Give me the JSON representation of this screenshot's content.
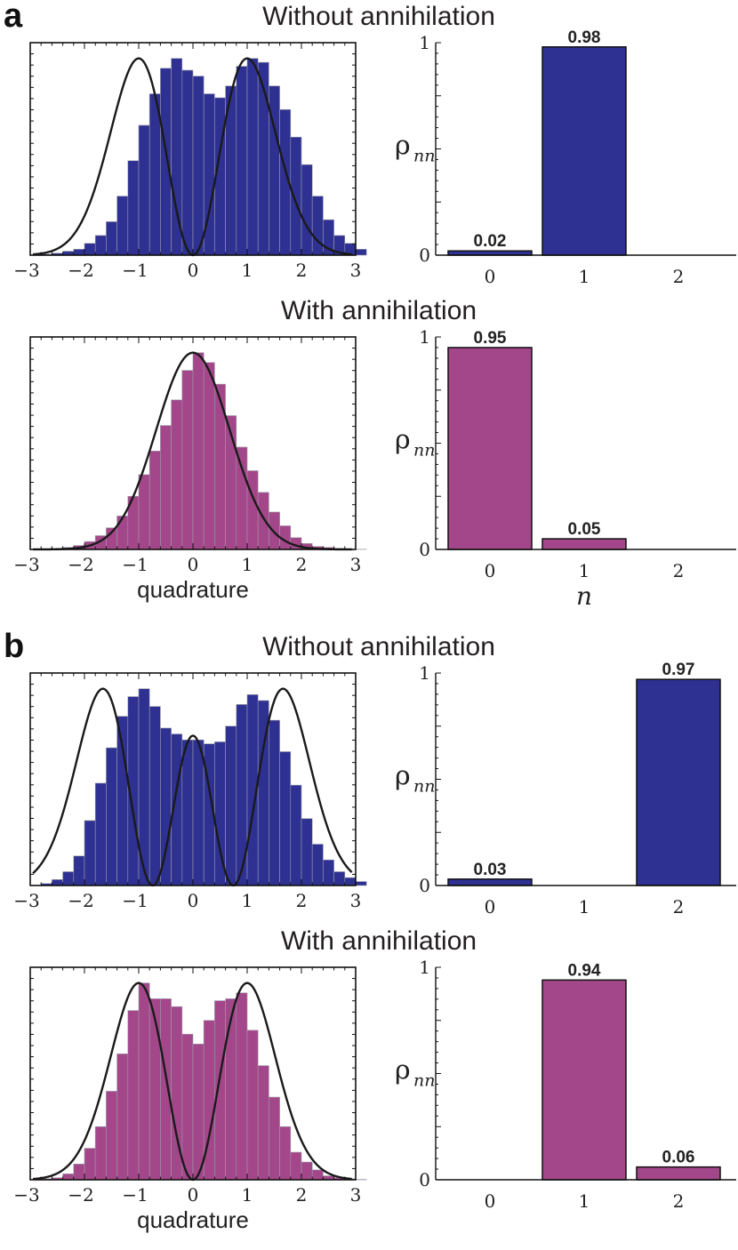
{
  "colors": {
    "blue": "#2e3192",
    "magenta": "#a4478a",
    "curve": "#1a1a1a"
  },
  "panels": [
    {
      "label": "a",
      "rows": [
        {
          "title": "Without annihilation",
          "color": "blue",
          "hist": {
            "type": "bar",
            "xlabel": "",
            "xlim": [
              -3,
              3
            ],
            "ylim": [
              0,
              1.08
            ],
            "xticks": [
              -3,
              -2,
              -1,
              0,
              1,
              2,
              3
            ],
            "bins": {
              "start": -2.8,
              "width": 0.2,
              "values": [
                0.005,
                0.01,
                0.02,
                0.03,
                0.06,
                0.1,
                0.17,
                0.3,
                0.48,
                0.66,
                0.82,
                0.95,
                1.0,
                0.94,
                0.91,
                0.82,
                0.8,
                0.86,
                0.96,
                1.0,
                0.98,
                0.86,
                0.74,
                0.6,
                0.46,
                0.3,
                0.18,
                0.1,
                0.06,
                0.03
              ]
            },
            "curve": {
              "type": "fock",
              "n": 1
            }
          },
          "bars": {
            "type": "bar",
            "categories": [
              "0",
              "1",
              "2"
            ],
            "values": [
              0.02,
              0.98,
              0
            ],
            "value_labels": [
              "0.02",
              "0.98",
              ""
            ],
            "ylim": [
              0,
              1
            ],
            "yticks": [
              "0",
              "1"
            ],
            "ylabel": "ρ",
            "ylabel_sub": "nn",
            "xlabel": ""
          }
        },
        {
          "title": "With annihilation",
          "color": "magenta",
          "hist": {
            "type": "bar",
            "xlabel": "quadrature",
            "xlim": [
              -3,
              3
            ],
            "ylim": [
              0,
              1.08
            ],
            "xticks": [
              -3,
              -2,
              -1,
              0,
              1,
              2,
              3
            ],
            "bins": {
              "start": -2.8,
              "width": 0.2,
              "values": [
                0.002,
                0.004,
                0.01,
                0.02,
                0.04,
                0.07,
                0.11,
                0.17,
                0.27,
                0.38,
                0.5,
                0.63,
                0.76,
                0.91,
                1.0,
                0.95,
                0.84,
                0.68,
                0.52,
                0.4,
                0.29,
                0.19,
                0.12,
                0.06,
                0.03,
                0.015,
                0.01,
                0.005,
                0.002,
                0.001
              ]
            },
            "curve": {
              "type": "fock",
              "n": 0
            }
          },
          "bars": {
            "type": "bar",
            "categories": [
              "0",
              "1",
              "2"
            ],
            "values": [
              0.95,
              0.05,
              0
            ],
            "value_labels": [
              "0.95",
              "0.05",
              ""
            ],
            "ylim": [
              0,
              1
            ],
            "yticks": [
              "0",
              "1"
            ],
            "ylabel": "ρ",
            "ylabel_sub": "nn",
            "xlabel": "n"
          }
        }
      ]
    },
    {
      "label": "b",
      "rows": [
        {
          "title": "Without annihilation",
          "color": "blue",
          "hist": {
            "type": "bar",
            "xlabel": "",
            "xlim": [
              -3,
              3
            ],
            "ylim": [
              0,
              1.08
            ],
            "xticks": [
              -3,
              -2,
              -1,
              0,
              1,
              2,
              3
            ],
            "bins": {
              "start": -2.8,
              "width": 0.2,
              "values": [
                0.01,
                0.03,
                0.07,
                0.15,
                0.33,
                0.52,
                0.7,
                0.86,
                0.96,
                1.0,
                0.91,
                0.8,
                0.77,
                0.74,
                0.74,
                0.72,
                0.73,
                0.81,
                0.92,
                0.97,
                0.94,
                0.84,
                0.68,
                0.51,
                0.34,
                0.21,
                0.13,
                0.07,
                0.04,
                0.02
              ]
            },
            "curve": {
              "type": "fock",
              "n": 2
            }
          },
          "bars": {
            "type": "bar",
            "categories": [
              "0",
              "1",
              "2"
            ],
            "values": [
              0.03,
              0,
              0.97
            ],
            "value_labels": [
              "0.03",
              "",
              "0.97"
            ],
            "ylim": [
              0,
              1
            ],
            "yticks": [
              "0",
              "1"
            ],
            "ylabel": "ρ",
            "ylabel_sub": "nn",
            "xlabel": ""
          }
        },
        {
          "title": "With annihilation",
          "color": "magenta",
          "hist": {
            "type": "bar",
            "xlabel": "quadrature",
            "xlim": [
              -3,
              3
            ],
            "ylim": [
              0,
              1.08
            ],
            "xticks": [
              -3,
              -2,
              -1,
              0,
              1,
              2,
              3
            ],
            "bins": {
              "start": -2.8,
              "width": 0.2,
              "values": [
                0.005,
                0.01,
                0.03,
                0.08,
                0.16,
                0.27,
                0.45,
                0.64,
                0.86,
                1.0,
                0.92,
                0.92,
                0.88,
                0.74,
                0.69,
                0.81,
                0.91,
                0.92,
                0.95,
                0.76,
                0.58,
                0.42,
                0.27,
                0.14,
                0.09,
                0.05,
                0.02,
                0.01,
                0.005,
                0.002
              ]
            },
            "curve": {
              "type": "fock",
              "n": 1
            }
          },
          "bars": {
            "type": "bar",
            "categories": [
              "0",
              "1",
              "2"
            ],
            "values": [
              0,
              0.94,
              0.06
            ],
            "value_labels": [
              "",
              "0.94",
              "0.06"
            ],
            "ylim": [
              0,
              1
            ],
            "yticks": [
              "0",
              "1"
            ],
            "ylabel": "ρ",
            "ylabel_sub": "nn",
            "xlabel": ""
          }
        }
      ]
    }
  ]
}
